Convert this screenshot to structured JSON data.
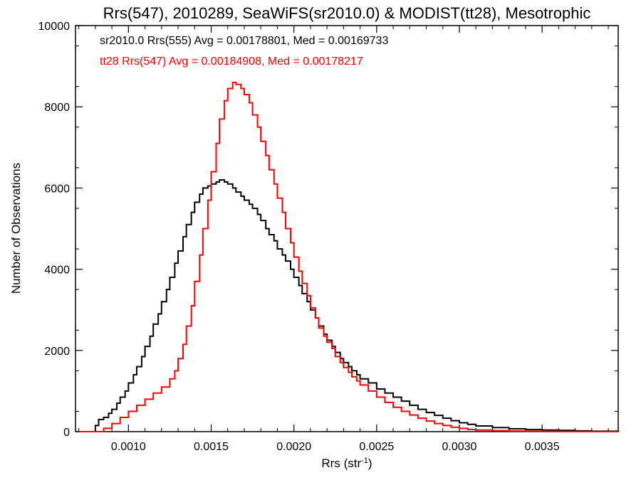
{
  "chart_data": {
    "type": "line",
    "title": "Rrs(547), 2010289, SeaWiFS(sr2010.0) & MODIST(tt28), Mesotrophic",
    "xlabel": "Rrs (str",
    "xlabel_sup": "-1",
    "xlabel_end": ")",
    "ylabel": "Number of Observations",
    "xlim": [
      0.00068,
      0.00396
    ],
    "ylim": [
      0,
      10000
    ],
    "xticks": [
      0.001,
      0.0015,
      0.002,
      0.0025,
      0.003,
      0.0035
    ],
    "xtick_labels": [
      "0.0010",
      "0.0015",
      "0.0020",
      "0.0025",
      "0.0030",
      "0.0035"
    ],
    "yticks": [
      0,
      2000,
      4000,
      6000,
      8000,
      10000
    ],
    "ytick_labels": [
      "0",
      "2000",
      "4000",
      "6000",
      "8000",
      "10000"
    ],
    "legend_position": "top-left",
    "step": "histogram",
    "series": [
      {
        "name": "sr2010.0 Rrs(555) Avg = 0.00178801, Med = 0.00169733",
        "color": "#000000",
        "x": [
          0.0007,
          0.00078,
          0.0008,
          0.00082,
          0.00085,
          0.00088,
          0.0009,
          0.00093,
          0.00095,
          0.00098,
          0.001,
          0.00103,
          0.00105,
          0.00108,
          0.0011,
          0.00113,
          0.00115,
          0.00118,
          0.0012,
          0.00123,
          0.00125,
          0.00128,
          0.0013,
          0.00133,
          0.00135,
          0.00138,
          0.0014,
          0.00143,
          0.00145,
          0.00148,
          0.0015,
          0.00153,
          0.00155,
          0.00158,
          0.0016,
          0.00163,
          0.00165,
          0.00168,
          0.0017,
          0.00173,
          0.00175,
          0.00178,
          0.0018,
          0.00183,
          0.00185,
          0.00188,
          0.0019,
          0.00193,
          0.00195,
          0.00198,
          0.002,
          0.00203,
          0.00205,
          0.00208,
          0.0021,
          0.00213,
          0.00215,
          0.00218,
          0.0022,
          0.00223,
          0.00225,
          0.00228,
          0.0023,
          0.00233,
          0.00235,
          0.00238,
          0.0024,
          0.00245,
          0.0025,
          0.00255,
          0.0026,
          0.00265,
          0.0027,
          0.00275,
          0.0028,
          0.00285,
          0.0029,
          0.00295,
          0.003,
          0.00305,
          0.0031,
          0.0032,
          0.0033,
          0.0034,
          0.0035,
          0.0036,
          0.0037,
          0.0038,
          0.00396
        ],
        "y": [
          0,
          0,
          150,
          300,
          350,
          450,
          550,
          700,
          850,
          1000,
          1200,
          1400,
          1600,
          1850,
          2100,
          2350,
          2650,
          2900,
          3200,
          3500,
          3800,
          4150,
          4450,
          4800,
          5100,
          5400,
          5650,
          5850,
          6000,
          6050,
          6100,
          6150,
          6200,
          6150,
          6100,
          6000,
          5900,
          5800,
          5700,
          5600,
          5500,
          5350,
          5200,
          5000,
          4850,
          4700,
          4500,
          4350,
          4200,
          4000,
          3800,
          3600,
          3400,
          3200,
          3000,
          2800,
          2600,
          2400,
          2250,
          2100,
          1950,
          1800,
          1700,
          1600,
          1500,
          1400,
          1300,
          1200,
          1050,
          950,
          850,
          750,
          650,
          550,
          470,
          400,
          330,
          270,
          220,
          180,
          140,
          100,
          70,
          50,
          40,
          30,
          20,
          10,
          5
        ]
      },
      {
        "name": "tt28 Rrs(547) Avg = 0.00184908, Med = 0.00178217",
        "color": "#ff0000",
        "x": [
          0.0007,
          0.0008,
          0.00085,
          0.0009,
          0.00095,
          0.001,
          0.00105,
          0.0011,
          0.00115,
          0.0012,
          0.00125,
          0.00128,
          0.0013,
          0.00133,
          0.00135,
          0.00138,
          0.0014,
          0.00143,
          0.00145,
          0.00148,
          0.0015,
          0.00153,
          0.00155,
          0.00158,
          0.0016,
          0.00163,
          0.00165,
          0.00168,
          0.0017,
          0.00173,
          0.00175,
          0.00178,
          0.0018,
          0.00183,
          0.00185,
          0.00188,
          0.0019,
          0.00193,
          0.00195,
          0.00198,
          0.002,
          0.00203,
          0.00205,
          0.00208,
          0.0021,
          0.00213,
          0.00215,
          0.00218,
          0.0022,
          0.00223,
          0.00225,
          0.00228,
          0.0023,
          0.00233,
          0.00235,
          0.00238,
          0.0024,
          0.00245,
          0.0025,
          0.00255,
          0.0026,
          0.00265,
          0.0027,
          0.00275,
          0.0028,
          0.00285,
          0.0029,
          0.00295,
          0.003,
          0.00305,
          0.0031,
          0.0032,
          0.0033,
          0.0034,
          0.0035,
          0.0036,
          0.0037,
          0.0038,
          0.00396
        ],
        "y": [
          0,
          0,
          80,
          200,
          350,
          500,
          650,
          800,
          950,
          1100,
          1300,
          1500,
          1800,
          2150,
          2600,
          3100,
          3700,
          4350,
          5000,
          5700,
          6400,
          7100,
          7700,
          8150,
          8450,
          8600,
          8550,
          8450,
          8300,
          8100,
          7800,
          7500,
          7150,
          6800,
          6450,
          6100,
          5750,
          5400,
          5000,
          4650,
          4300,
          3950,
          3650,
          3350,
          3050,
          2800,
          2550,
          2350,
          2200,
          2050,
          1850,
          1700,
          1580,
          1460,
          1350,
          1250,
          1150,
          1000,
          850,
          720,
          600,
          500,
          410,
          330,
          260,
          200,
          150,
          110,
          80,
          55,
          40,
          25,
          15,
          10,
          5,
          3,
          2,
          1,
          0
        ]
      }
    ]
  }
}
